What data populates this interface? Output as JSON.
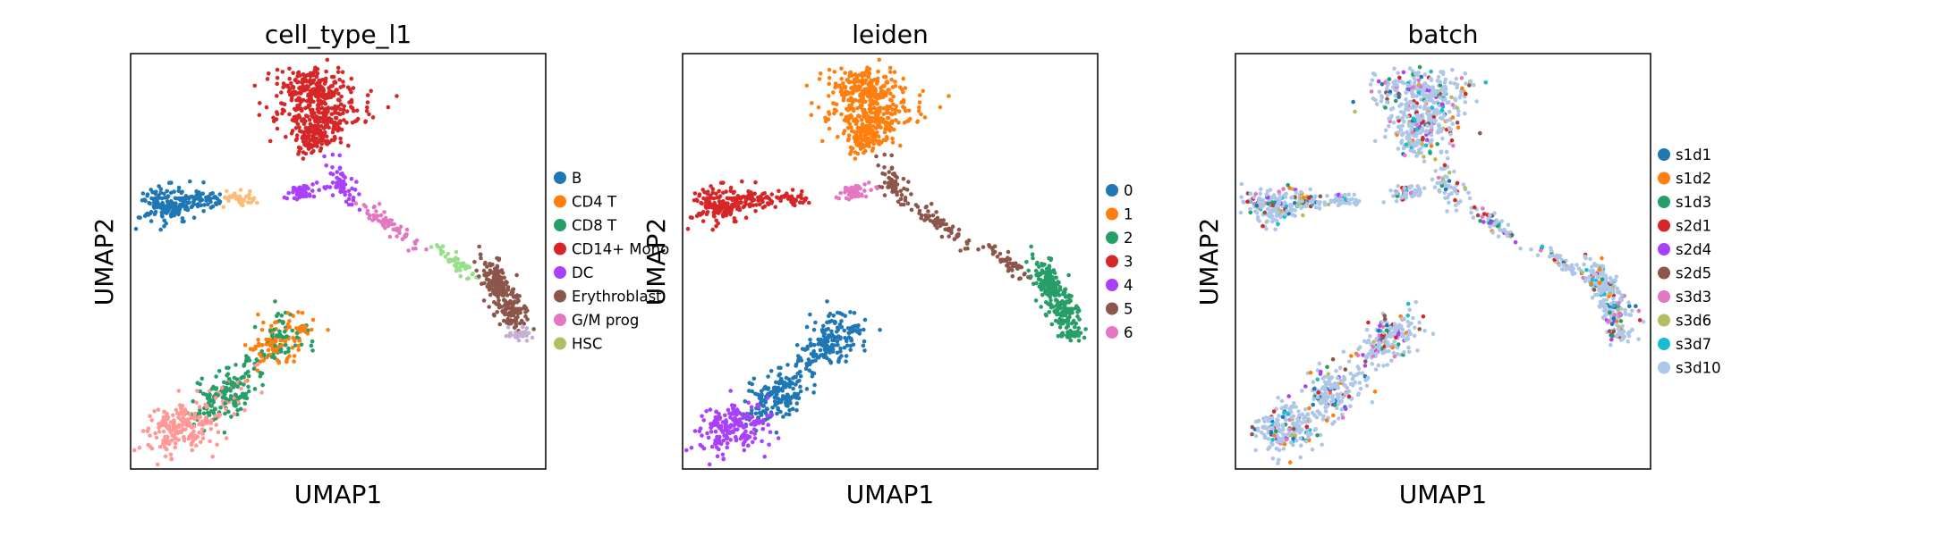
{
  "chart_data": [
    {
      "type": "scatter",
      "title": "cell_type_l1",
      "xlabel": "UMAP1",
      "ylabel": "UMAP2",
      "ticks": "none",
      "legend_position": "right",
      "legend": [
        {
          "label": "B",
          "color": "#1f77b4"
        },
        {
          "label": "CD4 T",
          "color": "#ff7f0e"
        },
        {
          "label": "CD8 T",
          "color": "#279e68"
        },
        {
          "label": "CD14+ Mono",
          "color": "#d62728"
        },
        {
          "label": "DC",
          "color": "#aa40fc"
        },
        {
          "label": "Erythroblast",
          "color": "#8c564b"
        },
        {
          "label": "G/M prog",
          "color": "#e377c2"
        },
        {
          "label": "HSC",
          "color": "#b5bd61"
        }
      ],
      "unlabeled_colors": [
        "#ff9896",
        "#f7b6d2",
        "#ffbb78",
        "#c5b0d5",
        "#98df8a"
      ]
    },
    {
      "type": "scatter",
      "title": "leiden",
      "xlabel": "UMAP1",
      "ylabel": "UMAP2",
      "ticks": "none",
      "legend_position": "right",
      "legend": [
        {
          "label": "0",
          "color": "#1f77b4"
        },
        {
          "label": "1",
          "color": "#ff7f0e"
        },
        {
          "label": "2",
          "color": "#279e68"
        },
        {
          "label": "3",
          "color": "#d62728"
        },
        {
          "label": "4",
          "color": "#aa40fc"
        },
        {
          "label": "5",
          "color": "#8c564b"
        },
        {
          "label": "6",
          "color": "#e377c2"
        }
      ]
    },
    {
      "type": "scatter",
      "title": "batch",
      "xlabel": "UMAP1",
      "ylabel": "UMAP2",
      "ticks": "none",
      "legend_position": "right",
      "legend": [
        {
          "label": "s1d1",
          "color": "#1f77b4"
        },
        {
          "label": "s1d2",
          "color": "#ff7f0e"
        },
        {
          "label": "s1d3",
          "color": "#279e68"
        },
        {
          "label": "s2d1",
          "color": "#d62728"
        },
        {
          "label": "s2d4",
          "color": "#aa40fc"
        },
        {
          "label": "s2d5",
          "color": "#8c564b"
        },
        {
          "label": "s3d3",
          "color": "#e377c2"
        },
        {
          "label": "s3d6",
          "color": "#b5bd61"
        },
        {
          "label": "s3d7",
          "color": "#17becf"
        },
        {
          "label": "s3d10",
          "color": "#aec7e8"
        }
      ]
    }
  ]
}
